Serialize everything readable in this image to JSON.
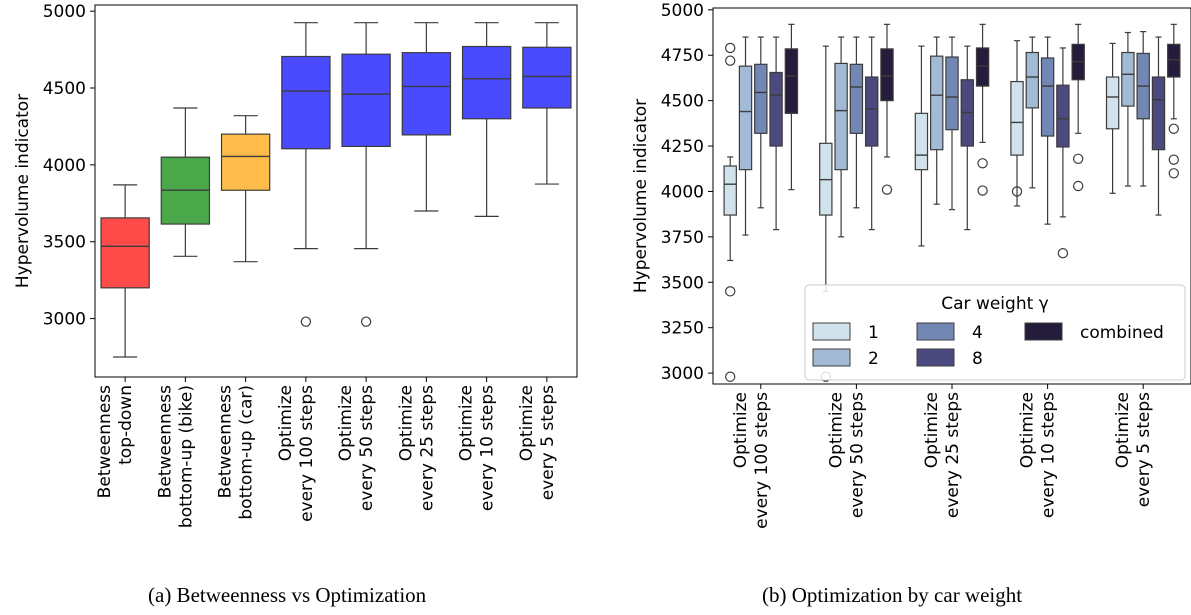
{
  "captions": {
    "a": "(a) Betweenness vs Optimization",
    "b": "(b) Optimization by car weight"
  },
  "chart_data": [
    {
      "type": "box",
      "ylabel": "Hypervolume indicator",
      "ylim": [
        2620,
        5040
      ],
      "yticks": [
        3000,
        3500,
        4000,
        4500,
        5000
      ],
      "categories": [
        [
          "Betweenness",
          "top-down"
        ],
        [
          "Betweenness",
          "bottom-up (bike)"
        ],
        [
          "Betweenness",
          "bottom-up (car)"
        ],
        [
          "Optimize",
          "every 100 steps"
        ],
        [
          "Optimize",
          "every 50 steps"
        ],
        [
          "Optimize",
          "every 25 steps"
        ],
        [
          "Optimize",
          "every 10 steps"
        ],
        [
          "Optimize",
          "every 5 steps"
        ]
      ],
      "colors": [
        "#ff4a4a",
        "#4aa84a",
        "#ffbc4a",
        "#4a4aff",
        "#4a4aff",
        "#4a4aff",
        "#4a4aff",
        "#4a4aff"
      ],
      "boxes": [
        {
          "whislo": 2750,
          "q1": 3200,
          "med": 3470,
          "q3": 3655,
          "whishi": 3870,
          "fliers": []
        },
        {
          "whislo": 3405,
          "q1": 3615,
          "med": 3835,
          "q3": 4050,
          "whishi": 4370,
          "fliers": []
        },
        {
          "whislo": 3370,
          "q1": 3835,
          "med": 4055,
          "q3": 4200,
          "whishi": 4320,
          "fliers": []
        },
        {
          "whislo": 3455,
          "q1": 4105,
          "med": 4480,
          "q3": 4705,
          "whishi": 4925,
          "fliers": [
            2980
          ]
        },
        {
          "whislo": 3455,
          "q1": 4120,
          "med": 4460,
          "q3": 4720,
          "whishi": 4925,
          "fliers": [
            2980
          ]
        },
        {
          "whislo": 3700,
          "q1": 4195,
          "med": 4510,
          "q3": 4730,
          "whishi": 4925,
          "fliers": []
        },
        {
          "whislo": 3665,
          "q1": 4300,
          "med": 4560,
          "q3": 4770,
          "whishi": 4925,
          "fliers": []
        },
        {
          "whislo": 3875,
          "q1": 4370,
          "med": 4575,
          "q3": 4765,
          "whishi": 4925,
          "fliers": []
        }
      ]
    },
    {
      "type": "box",
      "ylabel": "Hypervolume indicator",
      "ylim": [
        2940,
        5010
      ],
      "yticks": [
        3000,
        3250,
        3500,
        3750,
        4000,
        4250,
        4500,
        4750,
        5000
      ],
      "categories": [
        [
          "Optimize",
          "every 100 steps"
        ],
        [
          "Optimize",
          "every 50 steps"
        ],
        [
          "Optimize",
          "every 25 steps"
        ],
        [
          "Optimize",
          "every 10 steps"
        ],
        [
          "Optimize",
          "every 5 steps"
        ]
      ],
      "legend": {
        "title": "Car weight γ",
        "location": "lower right",
        "entries": [
          "1",
          "2",
          "4",
          "8",
          "combined"
        ]
      },
      "series": [
        {
          "name": "1",
          "color": "#d2e2ec",
          "boxes": [
            {
              "whislo": 3620,
              "q1": 3870,
              "med": 4040,
              "q3": 4140,
              "whishi": 4190,
              "fliers": [
                3450,
                2980,
                4720,
                4790
              ]
            },
            {
              "whislo": 3450,
              "q1": 3870,
              "med": 4065,
              "q3": 4265,
              "whishi": 4800,
              "fliers": [
                2980
              ]
            },
            {
              "whislo": 3700,
              "q1": 4120,
              "med": 4200,
              "q3": 4430,
              "whishi": 4800,
              "fliers": []
            },
            {
              "whislo": 3920,
              "q1": 4200,
              "med": 4380,
              "q3": 4605,
              "whishi": 4830,
              "fliers": [
                4000
              ]
            },
            {
              "whislo": 3990,
              "q1": 4345,
              "med": 4520,
              "q3": 4630,
              "whishi": 4815,
              "fliers": []
            }
          ]
        },
        {
          "name": "2",
          "color": "#a2bad5",
          "boxes": [
            {
              "whislo": 3760,
              "q1": 4120,
              "med": 4440,
              "q3": 4690,
              "whishi": 4850,
              "fliers": []
            },
            {
              "whislo": 3750,
              "q1": 4120,
              "med": 4445,
              "q3": 4705,
              "whishi": 4850,
              "fliers": []
            },
            {
              "whislo": 3930,
              "q1": 4230,
              "med": 4530,
              "q3": 4745,
              "whishi": 4850,
              "fliers": []
            },
            {
              "whislo": 4020,
              "q1": 4460,
              "med": 4630,
              "q3": 4765,
              "whishi": 4850,
              "fliers": []
            },
            {
              "whislo": 4030,
              "q1": 4470,
              "med": 4645,
              "q3": 4765,
              "whishi": 4875,
              "fliers": []
            }
          ]
        },
        {
          "name": "4",
          "color": "#7287b4",
          "boxes": [
            {
              "whislo": 3910,
              "q1": 4320,
              "med": 4545,
              "q3": 4700,
              "whishi": 4850,
              "fliers": []
            },
            {
              "whislo": 3910,
              "q1": 4320,
              "med": 4575,
              "q3": 4700,
              "whishi": 4850,
              "fliers": []
            },
            {
              "whislo": 3900,
              "q1": 4340,
              "med": 4520,
              "q3": 4740,
              "whishi": 4850,
              "fliers": []
            },
            {
              "whislo": 3820,
              "q1": 4305,
              "med": 4580,
              "q3": 4735,
              "whishi": 4850,
              "fliers": []
            },
            {
              "whislo": 4030,
              "q1": 4400,
              "med": 4580,
              "q3": 4760,
              "whishi": 4880,
              "fliers": []
            }
          ]
        },
        {
          "name": "8",
          "color": "#4a4a7e",
          "boxes": [
            {
              "whislo": 3790,
              "q1": 4250,
              "med": 4530,
              "q3": 4655,
              "whishi": 4850,
              "fliers": []
            },
            {
              "whislo": 3790,
              "q1": 4250,
              "med": 4455,
              "q3": 4630,
              "whishi": 4850,
              "fliers": []
            },
            {
              "whislo": 3790,
              "q1": 4250,
              "med": 4435,
              "q3": 4615,
              "whishi": 4800,
              "fliers": []
            },
            {
              "whislo": 3860,
              "q1": 4245,
              "med": 4400,
              "q3": 4585,
              "whishi": 4790,
              "fliers": [
                3660
              ]
            },
            {
              "whislo": 3870,
              "q1": 4230,
              "med": 4505,
              "q3": 4630,
              "whishi": 4850,
              "fliers": []
            }
          ]
        },
        {
          "name": "combined",
          "color": "#251c3c",
          "boxes": [
            {
              "whislo": 4010,
              "q1": 4430,
              "med": 4635,
              "q3": 4785,
              "whishi": 4920,
              "fliers": []
            },
            {
              "whislo": 4190,
              "q1": 4500,
              "med": 4635,
              "q3": 4785,
              "whishi": 4920,
              "fliers": [
                4010
              ]
            },
            {
              "whislo": 4270,
              "q1": 4580,
              "med": 4690,
              "q3": 4790,
              "whishi": 4920,
              "fliers": [
                4155,
                4005
              ]
            },
            {
              "whislo": 4320,
              "q1": 4615,
              "med": 4715,
              "q3": 4810,
              "whishi": 4920,
              "fliers": [
                4180,
                4030
              ]
            },
            {
              "whislo": 4400,
              "q1": 4630,
              "med": 4725,
              "q3": 4810,
              "whishi": 4920,
              "fliers": [
                4345,
                4175,
                4100
              ]
            }
          ]
        }
      ]
    }
  ]
}
